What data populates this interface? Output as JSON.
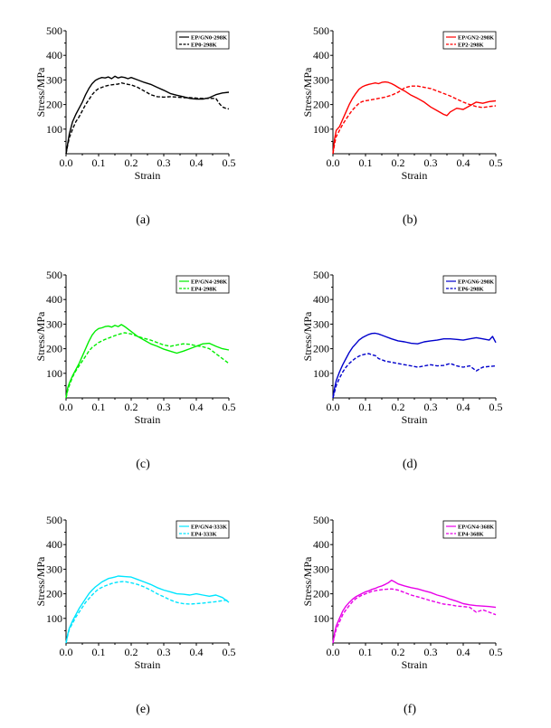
{
  "chart_data": [
    {
      "type": "line",
      "caption": "(a)",
      "xlabel": "Strain",
      "ylabel": "Stress/MPa",
      "xlim": [
        0,
        0.5
      ],
      "ylim": [
        0,
        500
      ],
      "xticks": [
        "0.0",
        "0.1",
        "0.2",
        "0.3",
        "0.4",
        "0.5"
      ],
      "yticks": [
        "100",
        "200",
        "300",
        "400",
        "500"
      ],
      "legend_position": "top-right",
      "series": [
        {
          "name": "EP/GN0-298K",
          "color": "#000000",
          "style": "solid",
          "x": [
            0,
            0.005,
            0.01,
            0.02,
            0.03,
            0.04,
            0.05,
            0.06,
            0.07,
            0.08,
            0.09,
            0.1,
            0.11,
            0.12,
            0.13,
            0.14,
            0.15,
            0.16,
            0.17,
            0.18,
            0.19,
            0.2,
            0.22,
            0.24,
            0.26,
            0.28,
            0.3,
            0.32,
            0.34,
            0.36,
            0.38,
            0.4,
            0.42,
            0.44,
            0.46,
            0.48,
            0.5
          ],
          "y": [
            0,
            40,
            80,
            130,
            160,
            185,
            210,
            240,
            265,
            285,
            298,
            305,
            310,
            308,
            312,
            305,
            315,
            308,
            312,
            310,
            305,
            310,
            300,
            290,
            282,
            270,
            258,
            245,
            238,
            232,
            225,
            222,
            222,
            228,
            240,
            247,
            250
          ]
        },
        {
          "name": "EP0-298K",
          "color": "#000000",
          "style": "dashed",
          "x": [
            0,
            0.005,
            0.01,
            0.02,
            0.03,
            0.04,
            0.05,
            0.06,
            0.07,
            0.08,
            0.09,
            0.1,
            0.11,
            0.12,
            0.13,
            0.14,
            0.15,
            0.16,
            0.17,
            0.18,
            0.19,
            0.2,
            0.22,
            0.24,
            0.26,
            0.28,
            0.3,
            0.32,
            0.34,
            0.36,
            0.38,
            0.4,
            0.42,
            0.44,
            0.46,
            0.47,
            0.48,
            0.49,
            0.5
          ],
          "y": [
            0,
            35,
            65,
            100,
            130,
            150,
            175,
            200,
            220,
            240,
            255,
            265,
            270,
            275,
            278,
            280,
            282,
            283,
            288,
            285,
            282,
            280,
            270,
            255,
            240,
            232,
            230,
            232,
            230,
            228,
            228,
            226,
            225,
            225,
            225,
            205,
            190,
            185,
            182
          ]
        }
      ]
    },
    {
      "type": "line",
      "caption": "(b)",
      "xlabel": "Strain",
      "ylabel": "Stress/MPa",
      "xlim": [
        0,
        0.5
      ],
      "ylim": [
        0,
        500
      ],
      "xticks": [
        "0.0",
        "0.1",
        "0.2",
        "0.3",
        "0.4",
        "0.5"
      ],
      "yticks": [
        "100",
        "200",
        "300",
        "400",
        "500"
      ],
      "legend_position": "top-right",
      "series": [
        {
          "name": "EP/GN2-298K",
          "color": "#ff0000",
          "style": "solid",
          "x": [
            0,
            0.005,
            0.01,
            0.02,
            0.03,
            0.04,
            0.05,
            0.06,
            0.07,
            0.08,
            0.09,
            0.1,
            0.11,
            0.12,
            0.13,
            0.14,
            0.15,
            0.16,
            0.17,
            0.18,
            0.19,
            0.2,
            0.21,
            0.22,
            0.24,
            0.26,
            0.28,
            0.3,
            0.32,
            0.34,
            0.35,
            0.36,
            0.38,
            0.4,
            0.42,
            0.44,
            0.46,
            0.48,
            0.5
          ],
          "y": [
            0,
            60,
            95,
            110,
            140,
            170,
            200,
            225,
            245,
            262,
            272,
            278,
            282,
            285,
            288,
            285,
            290,
            292,
            290,
            285,
            278,
            270,
            262,
            255,
            238,
            225,
            210,
            190,
            175,
            160,
            155,
            170,
            185,
            180,
            195,
            210,
            205,
            212,
            215
          ]
        },
        {
          "name": "EP2-298K",
          "color": "#ff0000",
          "style": "dashed",
          "x": [
            0,
            0.005,
            0.01,
            0.02,
            0.03,
            0.04,
            0.05,
            0.06,
            0.07,
            0.08,
            0.09,
            0.1,
            0.12,
            0.14,
            0.16,
            0.18,
            0.2,
            0.22,
            0.24,
            0.26,
            0.28,
            0.3,
            0.32,
            0.34,
            0.36,
            0.38,
            0.4,
            0.42,
            0.44,
            0.46,
            0.48,
            0.5
          ],
          "y": [
            0,
            40,
            70,
            95,
            120,
            140,
            160,
            178,
            192,
            205,
            212,
            215,
            220,
            225,
            230,
            238,
            250,
            268,
            275,
            275,
            270,
            265,
            255,
            245,
            235,
            222,
            210,
            200,
            192,
            188,
            192,
            195
          ]
        }
      ]
    },
    {
      "type": "line",
      "caption": "(c)",
      "xlabel": "Strain",
      "ylabel": "Stress/MPa",
      "xlim": [
        0,
        0.5
      ],
      "ylim": [
        0,
        500
      ],
      "xticks": [
        "0.0",
        "0.1",
        "0.2",
        "0.3",
        "0.4",
        "0.5"
      ],
      "yticks": [
        "100",
        "200",
        "300",
        "400",
        "500"
      ],
      "legend_position": "top-right",
      "series": [
        {
          "name": "EP/GN4-298K",
          "color": "#00ee00",
          "style": "solid",
          "x": [
            0,
            0.005,
            0.01,
            0.02,
            0.03,
            0.04,
            0.05,
            0.06,
            0.07,
            0.08,
            0.09,
            0.1,
            0.11,
            0.12,
            0.13,
            0.14,
            0.15,
            0.16,
            0.17,
            0.18,
            0.2,
            0.22,
            0.24,
            0.26,
            0.28,
            0.3,
            0.32,
            0.34,
            0.36,
            0.38,
            0.4,
            0.42,
            0.44,
            0.46,
            0.48,
            0.5
          ],
          "y": [
            0,
            40,
            60,
            90,
            115,
            140,
            170,
            200,
            230,
            255,
            272,
            282,
            285,
            290,
            292,
            288,
            295,
            290,
            298,
            290,
            270,
            250,
            235,
            220,
            210,
            198,
            190,
            182,
            190,
            200,
            210,
            220,
            222,
            210,
            200,
            195
          ]
        },
        {
          "name": "EP4-298K",
          "color": "#00ee00",
          "style": "dashed",
          "x": [
            0,
            0.005,
            0.01,
            0.02,
            0.03,
            0.04,
            0.05,
            0.06,
            0.07,
            0.08,
            0.09,
            0.1,
            0.12,
            0.14,
            0.16,
            0.18,
            0.2,
            0.22,
            0.24,
            0.26,
            0.28,
            0.3,
            0.32,
            0.34,
            0.36,
            0.38,
            0.4,
            0.42,
            0.44,
            0.46,
            0.48,
            0.5
          ],
          "y": [
            0,
            30,
            50,
            85,
            110,
            130,
            150,
            170,
            190,
            205,
            215,
            225,
            238,
            248,
            258,
            265,
            260,
            250,
            242,
            235,
            225,
            215,
            210,
            215,
            220,
            218,
            212,
            208,
            200,
            180,
            160,
            140
          ]
        }
      ]
    },
    {
      "type": "line",
      "caption": "(d)",
      "xlabel": "Strain",
      "ylabel": "Stress/MPa",
      "xlim": [
        0,
        0.5
      ],
      "ylim": [
        0,
        500
      ],
      "xticks": [
        "0.0",
        "0.1",
        "0.2",
        "0.3",
        "0.4",
        "0.5"
      ],
      "yticks": [
        "100",
        "200",
        "300",
        "400",
        "500"
      ],
      "legend_position": "top-right",
      "series": [
        {
          "name": "EP/GN6-298K",
          "color": "#0000cc",
          "style": "solid",
          "x": [
            0,
            0.005,
            0.01,
            0.02,
            0.03,
            0.04,
            0.05,
            0.06,
            0.07,
            0.08,
            0.09,
            0.1,
            0.11,
            0.12,
            0.13,
            0.14,
            0.15,
            0.16,
            0.18,
            0.2,
            0.22,
            0.24,
            0.26,
            0.28,
            0.3,
            0.32,
            0.34,
            0.36,
            0.38,
            0.4,
            0.42,
            0.44,
            0.46,
            0.48,
            0.49,
            0.5
          ],
          "y": [
            0,
            40,
            70,
            105,
            135,
            160,
            185,
            205,
            220,
            235,
            245,
            252,
            258,
            262,
            263,
            260,
            255,
            250,
            240,
            232,
            228,
            222,
            220,
            228,
            232,
            235,
            240,
            240,
            238,
            235,
            240,
            245,
            240,
            235,
            250,
            225
          ]
        },
        {
          "name": "EP6-298K",
          "color": "#0000cc",
          "style": "dashed",
          "x": [
            0,
            0.005,
            0.01,
            0.02,
            0.03,
            0.04,
            0.05,
            0.06,
            0.07,
            0.08,
            0.09,
            0.1,
            0.11,
            0.12,
            0.13,
            0.14,
            0.16,
            0.18,
            0.2,
            0.22,
            0.24,
            0.26,
            0.28,
            0.3,
            0.32,
            0.34,
            0.36,
            0.38,
            0.4,
            0.42,
            0.44,
            0.46,
            0.48,
            0.5
          ],
          "y": [
            0,
            25,
            50,
            80,
            105,
            125,
            140,
            152,
            162,
            170,
            175,
            178,
            180,
            175,
            172,
            160,
            150,
            145,
            140,
            135,
            130,
            125,
            130,
            135,
            130,
            132,
            140,
            130,
            125,
            130,
            110,
            125,
            128,
            130
          ]
        }
      ]
    },
    {
      "type": "line",
      "caption": "(e)",
      "xlabel": "Strain",
      "ylabel": "Stress/MPa",
      "xlim": [
        0,
        0.5
      ],
      "ylim": [
        0,
        500
      ],
      "xticks": [
        "0.0",
        "0.1",
        "0.2",
        "0.3",
        "0.4",
        "0.5"
      ],
      "yticks": [
        "100",
        "200",
        "300",
        "400",
        "500"
      ],
      "legend_position": "top-right",
      "series": [
        {
          "name": "EP/GN4-333K",
          "color": "#00e5ff",
          "style": "solid",
          "x": [
            0,
            0.005,
            0.01,
            0.02,
            0.03,
            0.04,
            0.05,
            0.06,
            0.07,
            0.08,
            0.09,
            0.1,
            0.11,
            0.12,
            0.13,
            0.14,
            0.15,
            0.16,
            0.18,
            0.2,
            0.22,
            0.24,
            0.26,
            0.28,
            0.3,
            0.32,
            0.34,
            0.36,
            0.38,
            0.4,
            0.42,
            0.44,
            0.46,
            0.48,
            0.5
          ],
          "y": [
            0,
            35,
            60,
            90,
            115,
            140,
            160,
            180,
            200,
            215,
            228,
            238,
            248,
            255,
            262,
            265,
            268,
            272,
            270,
            268,
            258,
            248,
            238,
            225,
            215,
            208,
            200,
            198,
            195,
            200,
            195,
            190,
            195,
            185,
            165
          ]
        },
        {
          "name": "EP4-333K",
          "color": "#00e5ff",
          "style": "dashed",
          "x": [
            0,
            0.005,
            0.01,
            0.02,
            0.03,
            0.04,
            0.05,
            0.06,
            0.07,
            0.08,
            0.09,
            0.1,
            0.12,
            0.14,
            0.16,
            0.18,
            0.2,
            0.22,
            0.24,
            0.26,
            0.28,
            0.3,
            0.32,
            0.34,
            0.36,
            0.38,
            0.4,
            0.42,
            0.44,
            0.46,
            0.48,
            0.5
          ],
          "y": [
            0,
            30,
            55,
            80,
            105,
            125,
            145,
            165,
            180,
            195,
            208,
            220,
            232,
            242,
            248,
            250,
            245,
            238,
            228,
            215,
            200,
            188,
            175,
            165,
            160,
            158,
            160,
            162,
            165,
            168,
            172,
            175
          ]
        }
      ]
    },
    {
      "type": "line",
      "caption": "(f)",
      "xlabel": "Strain",
      "ylabel": "Stress/MPa",
      "xlim": [
        0,
        0.5
      ],
      "ylim": [
        0,
        500
      ],
      "xticks": [
        "0.0",
        "0.1",
        "0.2",
        "0.3",
        "0.4",
        "0.5"
      ],
      "yticks": [
        "100",
        "200",
        "300",
        "400",
        "500"
      ],
      "legend_position": "top-right",
      "series": [
        {
          "name": "EP/GN4-368K",
          "color": "#e800e8",
          "style": "solid",
          "x": [
            0,
            0.005,
            0.01,
            0.02,
            0.03,
            0.04,
            0.05,
            0.06,
            0.07,
            0.08,
            0.09,
            0.1,
            0.11,
            0.12,
            0.13,
            0.14,
            0.15,
            0.16,
            0.17,
            0.18,
            0.19,
            0.2,
            0.22,
            0.24,
            0.26,
            0.28,
            0.3,
            0.32,
            0.34,
            0.36,
            0.38,
            0.4,
            0.42,
            0.44,
            0.46,
            0.48,
            0.5
          ],
          "y": [
            0,
            40,
            70,
            100,
            130,
            150,
            165,
            178,
            188,
            195,
            202,
            208,
            212,
            218,
            222,
            228,
            232,
            238,
            245,
            255,
            248,
            240,
            232,
            225,
            220,
            212,
            205,
            195,
            188,
            178,
            170,
            160,
            155,
            152,
            150,
            148,
            145
          ]
        },
        {
          "name": "EP4-368K",
          "color": "#e800e8",
          "style": "dashed",
          "x": [
            0,
            0.005,
            0.01,
            0.02,
            0.03,
            0.04,
            0.05,
            0.06,
            0.07,
            0.08,
            0.09,
            0.1,
            0.12,
            0.14,
            0.16,
            0.18,
            0.2,
            0.22,
            0.24,
            0.26,
            0.28,
            0.3,
            0.32,
            0.34,
            0.36,
            0.38,
            0.4,
            0.42,
            0.44,
            0.46,
            0.48,
            0.5
          ],
          "y": [
            0,
            30,
            55,
            85,
            115,
            135,
            152,
            168,
            180,
            188,
            195,
            200,
            210,
            215,
            218,
            220,
            215,
            205,
            195,
            188,
            180,
            172,
            165,
            158,
            155,
            150,
            148,
            145,
            125,
            135,
            125,
            115
          ]
        }
      ]
    }
  ]
}
